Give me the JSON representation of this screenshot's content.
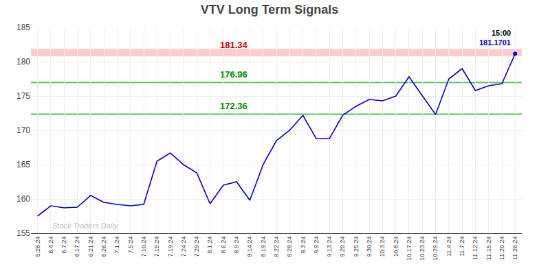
{
  "chart_data": {
    "type": "line",
    "title": "VTV Long Term Signals",
    "categories": [
      "5.28.24",
      "6.4.24",
      "6.7.24",
      "6.17.24",
      "6.21.24",
      "6.26.24",
      "7.1.24",
      "7.5.24",
      "7.10.24",
      "7.15.24",
      "7.19.24",
      "7.24.24",
      "7.29.24",
      "8.1.24",
      "8.6.24",
      "8.9.24",
      "8.14.24",
      "8.19.24",
      "8.22.24",
      "8.28.24",
      "9.3.24",
      "9.9.24",
      "9.13.24",
      "9.20.24",
      "9.25.24",
      "9.30.24",
      "10.3.24",
      "10.8.24",
      "10.17.24",
      "10.23.24",
      "10.29.24",
      "11.4.24",
      "11.7.24",
      "11.12.24",
      "11.15.24",
      "11.20.24",
      "11.26.24"
    ],
    "values": [
      157.5,
      159.0,
      158.7,
      158.8,
      160.5,
      159.5,
      159.2,
      159.0,
      159.2,
      165.5,
      166.7,
      165.0,
      163.8,
      159.3,
      162.0,
      162.5,
      159.8,
      165.0,
      168.5,
      170.0,
      172.2,
      168.8,
      168.8,
      172.2,
      173.5,
      174.5,
      174.3,
      175.0,
      177.8,
      175.0,
      172.3,
      177.5,
      179.0,
      175.8,
      176.5,
      176.8,
      181.1701
    ],
    "color": "#0000cc",
    "ylim": [
      155,
      185
    ],
    "yticks": [
      155,
      160,
      165,
      170,
      175,
      180,
      185
    ],
    "grid": true,
    "hlines": [
      {
        "value": 181.34,
        "style": "band",
        "color": "#ffcccc",
        "label": "181.34",
        "label_color": "#cc0000"
      },
      {
        "value": 176.96,
        "style": "line",
        "color": "#44bb44",
        "label": "176.96",
        "label_color": "#008800"
      },
      {
        "value": 172.36,
        "style": "line",
        "color": "#44bb44",
        "label": "172.36",
        "label_color": "#008800"
      }
    ],
    "last_labels": [
      {
        "text": "15:00",
        "color": "black"
      },
      {
        "text": "181.1701",
        "color": "#0000cc"
      }
    ],
    "watermark": {
      "text": "Stock Traders Daily",
      "color": "#bbbbbb"
    }
  }
}
